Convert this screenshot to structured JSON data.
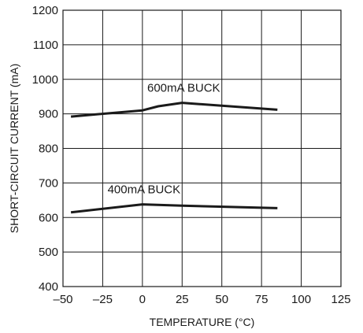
{
  "chart_data": {
    "type": "line",
    "xlabel": "TEMPERATURE (°C)",
    "ylabel": "SHORT-CIRCUIT CURRENT (mA)",
    "xlim": [
      -50,
      125
    ],
    "ylim": [
      400,
      1200
    ],
    "xticks": [
      -50,
      -25,
      0,
      25,
      50,
      75,
      100,
      125
    ],
    "yticks": [
      400,
      500,
      600,
      700,
      800,
      900,
      1000,
      1100,
      1200
    ],
    "xtick_labels": [
      "–50",
      "–25",
      "0",
      "25",
      "50",
      "75",
      "100",
      "125"
    ],
    "ytick_labels": [
      "400",
      "500",
      "600",
      "700",
      "800",
      "900",
      "1000",
      "1100",
      "1200"
    ],
    "grid": true,
    "series": [
      {
        "name": "600mA BUCK",
        "x": [
          -45,
          0,
          10,
          25,
          85
        ],
        "y": [
          892,
          910,
          922,
          932,
          912
        ]
      },
      {
        "name": "400mA BUCK",
        "x": [
          -45,
          0,
          25,
          85
        ],
        "y": [
          615,
          638,
          634,
          627
        ]
      }
    ]
  }
}
